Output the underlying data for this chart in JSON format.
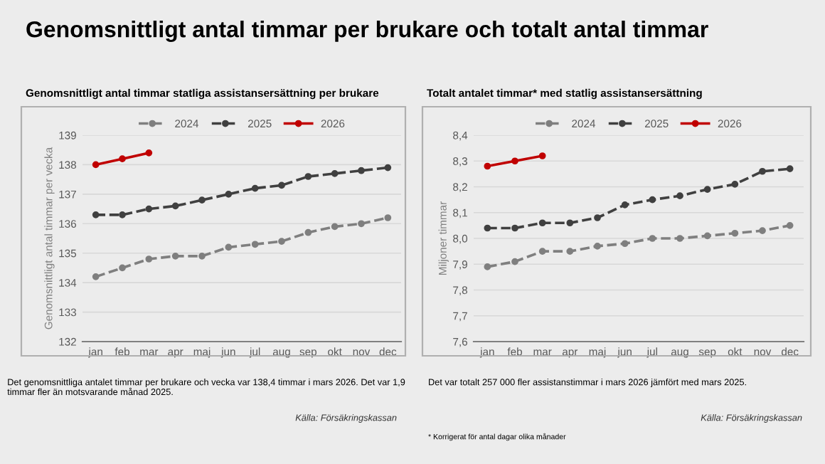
{
  "chart_data": [
    {
      "type": "line",
      "title": "Genomsnittligt antal timmar per brukare och totalt antal timmar",
      "subtitle": "Genomsnittligt antal timmar statliga assistansersättning per brukare",
      "ylabel": "Genomsnittligt antal timmar per vecka",
      "categories": [
        "jan",
        "feb",
        "mar",
        "apr",
        "maj",
        "jun",
        "jul",
        "aug",
        "sep",
        "okt",
        "nov",
        "dec"
      ],
      "series": [
        {
          "name": "2024",
          "color": "#7f7f7f",
          "line_style": "dashed",
          "values": [
            134.2,
            134.5,
            134.8,
            134.9,
            134.9,
            135.2,
            135.3,
            135.4,
            135.7,
            135.9,
            136.0,
            136.2
          ]
        },
        {
          "name": "2025",
          "color": "#404040",
          "line_style": "dashed",
          "values": [
            136.3,
            136.3,
            136.5,
            136.6,
            136.8,
            137.0,
            137.2,
            137.3,
            137.6,
            137.7,
            137.8,
            137.9
          ]
        },
        {
          "name": "2026",
          "color": "#c00000",
          "line_style": "solid",
          "values": [
            138.0,
            138.2,
            138.4,
            null,
            null,
            null,
            null,
            null,
            null,
            null,
            null,
            null
          ]
        }
      ],
      "ylim": [
        132,
        139
      ],
      "yticks": [
        132,
        133,
        134,
        135,
        136,
        137,
        138,
        139
      ],
      "grid": "y",
      "legend": "top",
      "marker": "circle",
      "annotations": [
        "Det genomsnittliga antalet timmar per brukare och vecka var 138,4 timmar i mars 2026. Det var 1,9 timmar fler än motsvarande månad 2025.",
        "Källa: Försäkringskassan"
      ]
    },
    {
      "type": "line",
      "subtitle": "Totalt antalet timmar* med statlig assistansersättning",
      "ylabel": "Miljoner timmar",
      "categories": [
        "jan",
        "feb",
        "mar",
        "apr",
        "maj",
        "jun",
        "jul",
        "aug",
        "sep",
        "okt",
        "nov",
        "dec"
      ],
      "series": [
        {
          "name": "2024",
          "color": "#7f7f7f",
          "line_style": "dashed",
          "values": [
            7.89,
            7.91,
            7.95,
            7.95,
            7.97,
            7.98,
            8.0,
            8.0,
            8.01,
            8.02,
            8.03,
            8.05
          ]
        },
        {
          "name": "2025",
          "color": "#404040",
          "line_style": "dashed",
          "values": [
            8.04,
            8.04,
            8.06,
            8.06,
            8.08,
            8.13,
            8.15,
            8.165,
            8.19,
            8.21,
            8.26,
            8.27
          ]
        },
        {
          "name": "2026",
          "color": "#c00000",
          "line_style": "solid",
          "values": [
            8.28,
            8.3,
            8.32,
            null,
            null,
            null,
            null,
            null,
            null,
            null,
            null,
            null
          ]
        }
      ],
      "ylim": [
        7.6,
        8.4
      ],
      "yticks": [
        {
          "value": 7.6,
          "label": "7,6"
        },
        {
          "value": 7.7,
          "label": "7,7"
        },
        {
          "value": 7.8,
          "label": "7,8"
        },
        {
          "value": 7.9,
          "label": "7,9"
        },
        {
          "value": 8.0,
          "label": "8,0"
        },
        {
          "value": 8.1,
          "label": "8,1"
        },
        {
          "value": 8.2,
          "label": "8,2"
        },
        {
          "value": 8.3,
          "label": "8,3"
        },
        {
          "value": 8.4,
          "label": "8,4"
        }
      ],
      "grid": "y",
      "legend": "top",
      "marker": "circle",
      "annotations": [
        "Det var totalt 257 000 fler assistanstimmar i mars 2026 jämfört med mars 2025.",
        "Källa: Försäkringskassan",
        "* Korrigerat för antal dagar olika månader"
      ]
    }
  ]
}
